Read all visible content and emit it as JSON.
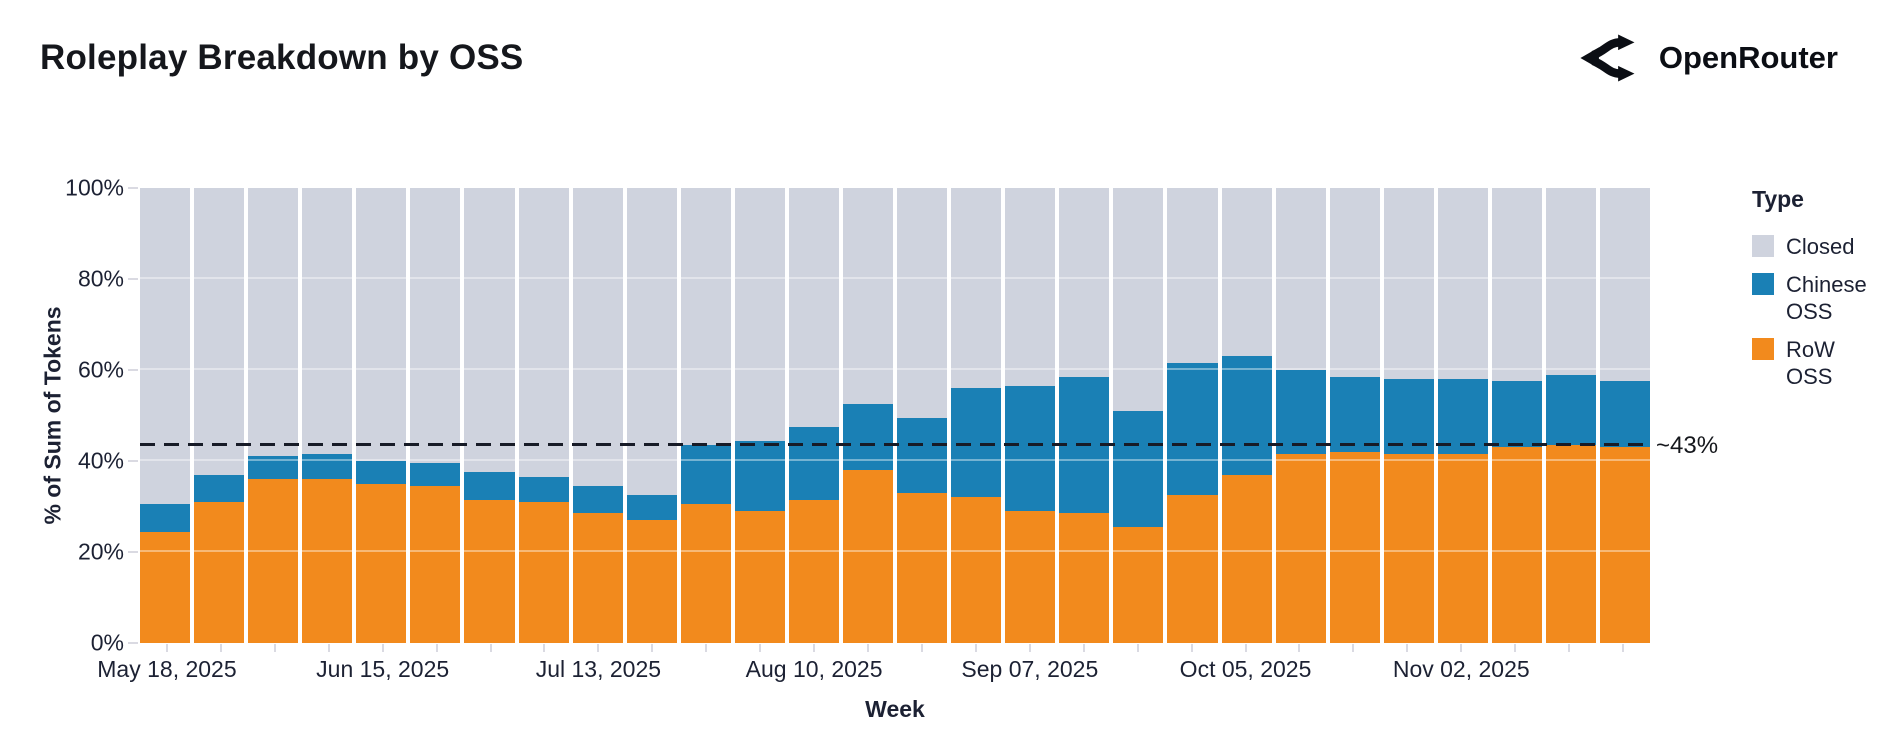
{
  "header": {
    "title": "Roleplay Breakdown by OSS",
    "brand": "OpenRouter",
    "brand_icon": "openrouter-logo-icon"
  },
  "legend": {
    "title": "Type",
    "items": [
      {
        "label": "Closed",
        "color": "#cfd3de"
      },
      {
        "label": "Chinese OSS",
        "color": "#1a80b5"
      },
      {
        "label": "RoW OSS",
        "color": "#f28a1d"
      }
    ]
  },
  "colors": {
    "closed": "#cfd3de",
    "chinese_oss": "#1a80b5",
    "row_oss": "#f28a1d",
    "text": "#1c2133",
    "reference_line": "#171b27"
  },
  "chart_data": {
    "type": "bar",
    "stacked": true,
    "title": "Roleplay Breakdown by OSS",
    "xlabel": "Week",
    "ylabel": "% of Sum of Tokens",
    "ylim": [
      0,
      100
    ],
    "y_tick_values": [
      0,
      20,
      40,
      60,
      80,
      100
    ],
    "y_tick_labels": [
      "0%",
      "20%",
      "40%",
      "60%",
      "80%",
      "100%"
    ],
    "x_tick_labels": [
      "May 18, 2025",
      "Jun 15, 2025",
      "Jul 13, 2025",
      "Aug 10, 2025",
      "Sep 07, 2025",
      "Oct 05, 2025",
      "Nov 02, 2025"
    ],
    "x_tick_every": 4,
    "legend_position": "right",
    "categories": [
      "May 18, 2025",
      "May 25, 2025",
      "Jun 01, 2025",
      "Jun 08, 2025",
      "Jun 15, 2025",
      "Jun 22, 2025",
      "Jun 29, 2025",
      "Jul 06, 2025",
      "Jul 13, 2025",
      "Jul 20, 2025",
      "Jul 27, 2025",
      "Aug 03, 2025",
      "Aug 10, 2025",
      "Aug 17, 2025",
      "Aug 24, 2025",
      "Aug 31, 2025",
      "Sep 07, 2025",
      "Sep 14, 2025",
      "Sep 21, 2025",
      "Sep 28, 2025",
      "Oct 05, 2025",
      "Oct 12, 2025",
      "Oct 19, 2025",
      "Oct 26, 2025",
      "Nov 02, 2025",
      "Nov 09, 2025",
      "Nov 16, 2025",
      "Nov 23, 2025"
    ],
    "series": [
      {
        "name": "RoW OSS",
        "color": "#f28a1d",
        "values": [
          24.5,
          31,
          36,
          36,
          35,
          34.5,
          31.5,
          31,
          28.5,
          27,
          30.5,
          29,
          31.5,
          38,
          33,
          32,
          29,
          28.5,
          25.5,
          32.5,
          37,
          41.5,
          42,
          41.5,
          41.5,
          43,
          43.5,
          43
        ]
      },
      {
        "name": "Chinese OSS",
        "color": "#1a80b5",
        "values": [
          6,
          6,
          5,
          5.5,
          5,
          5,
          6,
          5.5,
          6,
          5.5,
          13,
          15.5,
          16,
          14.5,
          16.5,
          24,
          27.5,
          30,
          25.5,
          29,
          26,
          18.5,
          16.5,
          16.5,
          16.5,
          14.5,
          15.5,
          14.5
        ]
      },
      {
        "name": "Closed",
        "color": "#cfd3de",
        "values": [
          69.5,
          63,
          59,
          58.5,
          60,
          60.5,
          62.5,
          63.5,
          65.5,
          67.5,
          56.5,
          55.5,
          52.5,
          47.5,
          50.5,
          44,
          43.5,
          41.5,
          49,
          38.5,
          37,
          40,
          41.5,
          42,
          42,
          42.5,
          41,
          42.5
        ]
      }
    ],
    "reference_line": {
      "value": 43.3,
      "label": "~43%",
      "style": "dashed"
    }
  }
}
